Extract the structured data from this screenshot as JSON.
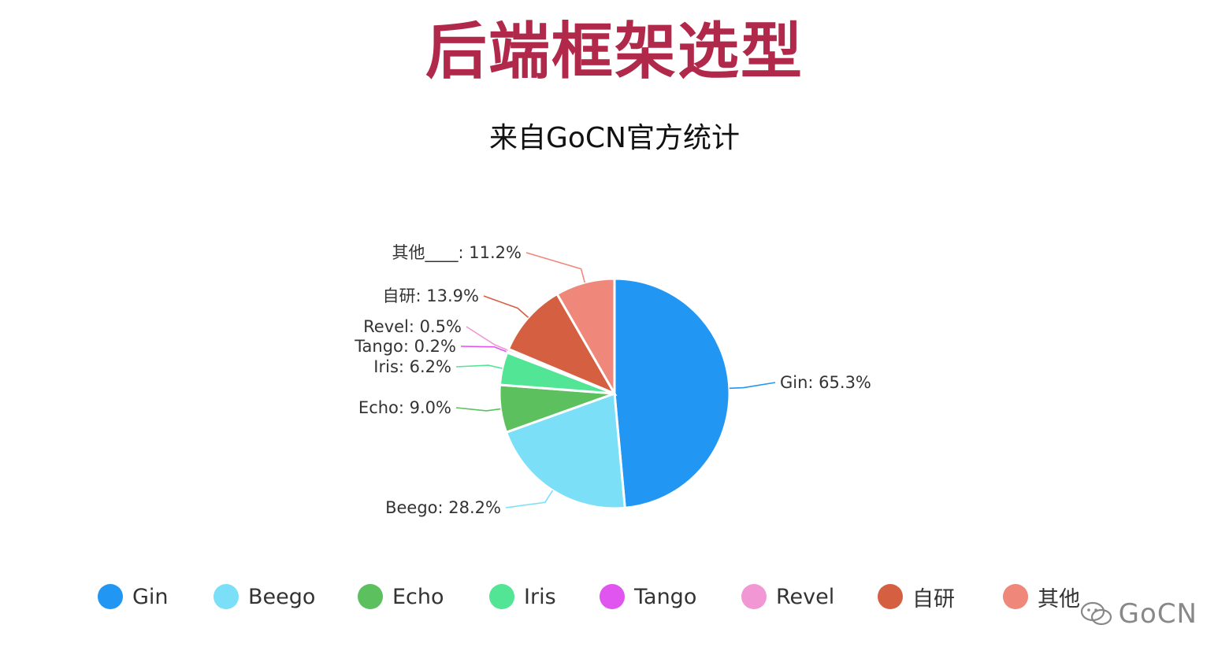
{
  "chart_data": {
    "type": "pie",
    "title": "后端框架选型",
    "subtitle": "来自GoCN官方统计",
    "slices": [
      {
        "name": "Gin",
        "label": "Gin: 65.3%",
        "value": 65.3,
        "color": "#2196f3"
      },
      {
        "name": "Beego",
        "label": "Beego: 28.2%",
        "value": 28.2,
        "color": "#7bdff8"
      },
      {
        "name": "Echo",
        "label": "Echo: 9.0%",
        "value": 9.0,
        "color": "#5cc05e"
      },
      {
        "name": "Iris",
        "label": "Iris: 6.2%",
        "value": 6.2,
        "color": "#52e596"
      },
      {
        "name": "Tango",
        "label": "Tango: 0.2%",
        "value": 0.2,
        "color": "#e055ef"
      },
      {
        "name": "Revel",
        "label": "Revel: 0.5%",
        "value": 0.5,
        "color": "#f097d4"
      },
      {
        "name": "自研",
        "label": "自研: 13.9%",
        "value": 13.9,
        "color": "#d55f41"
      },
      {
        "name": "其他",
        "label": "其他____: 11.2%",
        "value": 11.2,
        "color": "#f0877b"
      }
    ],
    "legend": {
      "position": "bottom",
      "items": [
        "Gin",
        "Beego",
        "Echo",
        "Iris",
        "Tango",
        "Revel",
        "自研",
        "其他"
      ]
    }
  },
  "watermark": {
    "text": "GoCN",
    "icon": "wechat-icon"
  }
}
